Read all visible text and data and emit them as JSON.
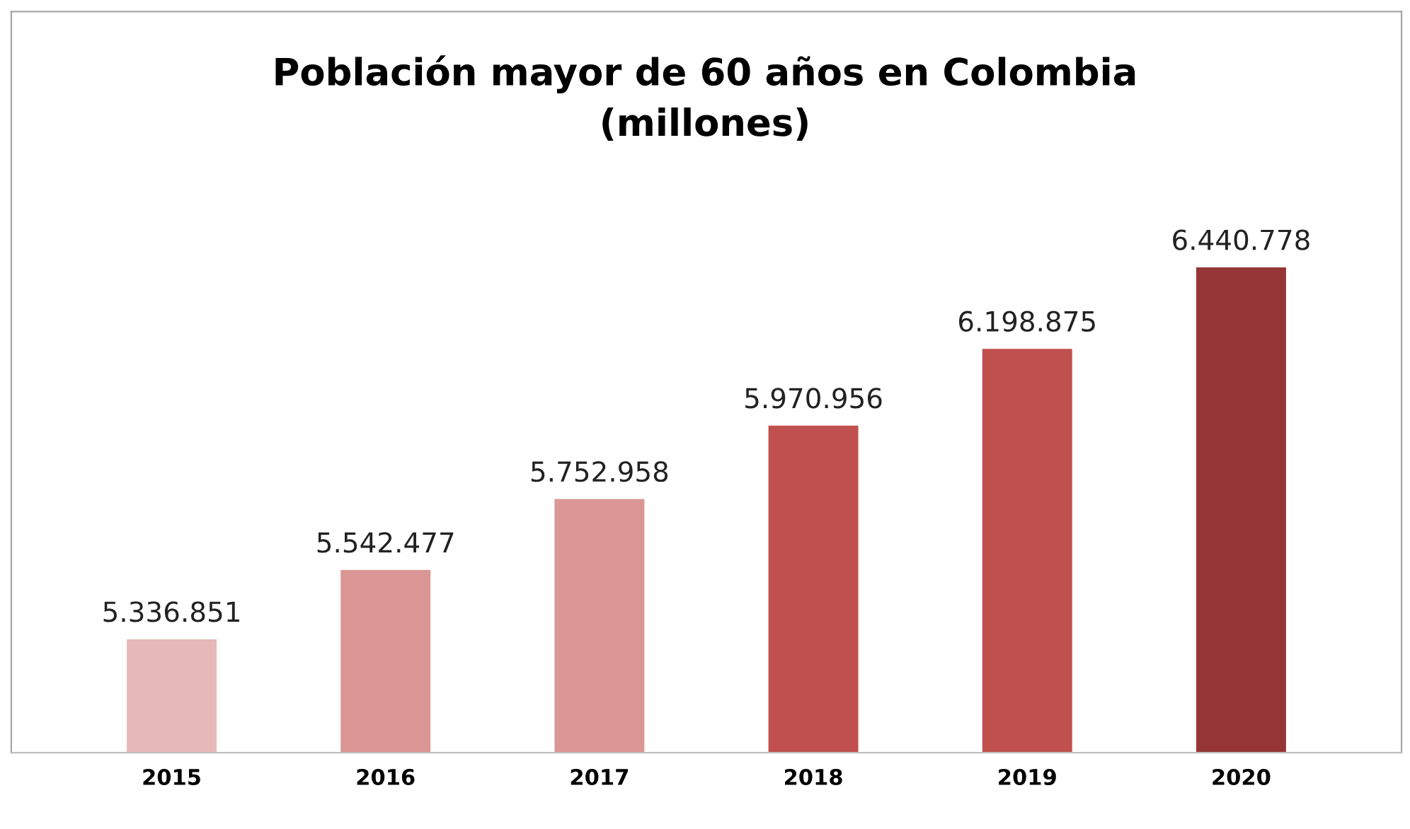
{
  "chart_data": {
    "type": "bar",
    "title": "Población mayor de 60 años en Colombia\n(millones)",
    "categories": [
      "2015",
      "2016",
      "2017",
      "2018",
      "2019",
      "2020"
    ],
    "values": [
      5336851,
      5542477,
      5752958,
      5970956,
      6198875,
      6440778
    ],
    "value_labels": [
      "5.336.851",
      "5.542.477",
      "5.752.958",
      "5.970.956",
      "6.198.875",
      "6.440.778"
    ],
    "colors": [
      "#e6b8b7",
      "#da9694",
      "#da9694",
      "#c0504d",
      "#c0504d",
      "#963634"
    ],
    "ylim": [
      5000000,
      7200000
    ],
    "grid": false,
    "legend": false
  }
}
